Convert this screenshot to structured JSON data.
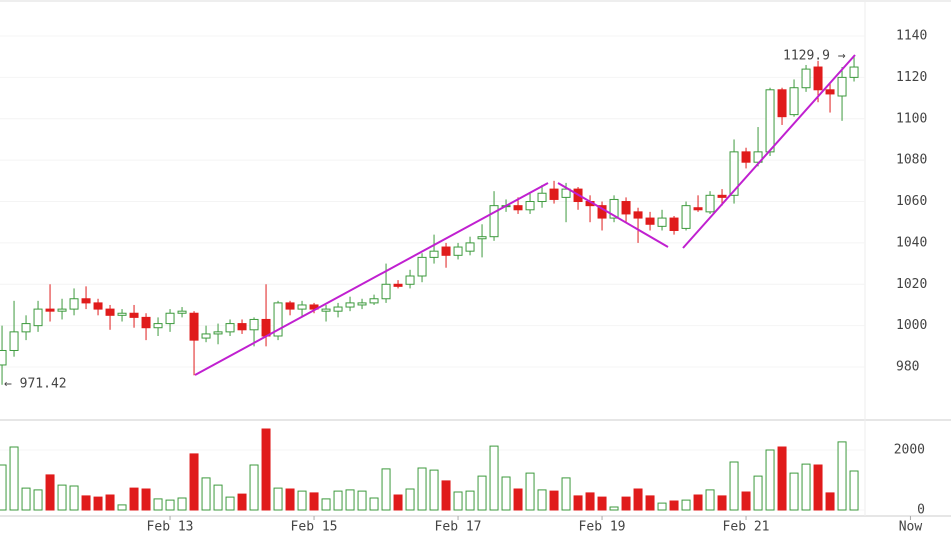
{
  "chart_data": {
    "type": "candlestick",
    "open": [
      981,
      988,
      997,
      1000,
      1008,
      1007,
      1008,
      1013,
      1011,
      1008,
      1005,
      1006,
      1004,
      999,
      1001,
      1006,
      1006,
      994,
      996,
      997,
      1001,
      998,
      1003,
      995,
      1011,
      1008,
      1010,
      1007,
      1007,
      1009,
      1010,
      1011,
      1013,
      1020,
      1020,
      1024,
      1033,
      1038,
      1034,
      1036,
      1042,
      1043,
      1058,
      1058,
      1056,
      1060,
      1066,
      1062,
      1066,
      1060,
      1058,
      1052,
      1060,
      1055,
      1052,
      1048,
      1052,
      1047,
      1057,
      1055,
      1063,
      1063,
      1084,
      1079,
      1084,
      1114,
      1102,
      1115,
      1125,
      1114,
      1111,
      1120
    ],
    "high": [
      1000,
      1012,
      1005,
      1012,
      1020,
      1013,
      1018,
      1019,
      1013,
      1010,
      1008,
      1010,
      1006,
      1004,
      1008,
      1009,
      1007,
      1000,
      1001,
      1003,
      1003,
      1004,
      1020,
      1012,
      1012,
      1012,
      1011,
      1010,
      1011,
      1014,
      1013,
      1015,
      1030,
      1022,
      1027,
      1035,
      1044,
      1040,
      1040,
      1043,
      1049,
      1065,
      1061,
      1062,
      1064,
      1068,
      1070,
      1069,
      1067,
      1063,
      1060,
      1063,
      1062,
      1057,
      1055,
      1056,
      1053,
      1060,
      1063,
      1065,
      1066,
      1090,
      1086,
      1096,
      1115,
      1115,
      1119,
      1126,
      1128,
      1117,
      1125,
      1129.9
    ],
    "low": [
      971.42,
      985,
      993,
      997,
      1002,
      1003,
      1005,
      1008,
      1005,
      998,
      1002,
      999,
      993,
      995,
      997,
      1004,
      976,
      992,
      991,
      995,
      996,
      990,
      990,
      993,
      1005,
      1004,
      1006,
      1002,
      1004,
      1007,
      1008,
      1010,
      1011,
      1018,
      1018,
      1021,
      1030,
      1028,
      1032,
      1034,
      1033,
      1041,
      1055,
      1054,
      1054,
      1057,
      1059,
      1050,
      1056,
      1050,
      1046,
      1050,
      1050,
      1040,
      1046,
      1046,
      1044,
      1046,
      1055,
      1054,
      1058,
      1059,
      1076,
      1077,
      1082,
      1097,
      1101,
      1113,
      1108,
      1103,
      1099,
      1118
    ],
    "close": [
      988,
      997,
      1001,
      1008,
      1007,
      1008,
      1013,
      1011,
      1008,
      1005,
      1006,
      1004,
      999,
      1001,
      1006,
      1007,
      993,
      996,
      997,
      1001,
      998,
      1003,
      995,
      1011,
      1008,
      1010,
      1008,
      1008,
      1009,
      1011,
      1011,
      1013,
      1020,
      1019,
      1024,
      1033,
      1036,
      1034,
      1038,
      1040,
      1043,
      1058,
      1058,
      1056,
      1060,
      1064,
      1061,
      1066,
      1060,
      1058,
      1052,
      1061,
      1054,
      1052,
      1049,
      1052,
      1046,
      1058,
      1056,
      1063,
      1062,
      1084,
      1079,
      1084,
      1114,
      1101,
      1115,
      1124,
      1114,
      1112,
      1120,
      1125
    ],
    "volume": [
      1500,
      2100,
      730,
      670,
      1170,
      830,
      800,
      470,
      430,
      500,
      170,
      730,
      700,
      370,
      330,
      400,
      1870,
      1070,
      830,
      430,
      530,
      1500,
      2700,
      730,
      700,
      630,
      570,
      370,
      630,
      670,
      630,
      400,
      1370,
      500,
      700,
      1400,
      1330,
      970,
      600,
      630,
      1130,
      2130,
      1100,
      700,
      1230,
      670,
      630,
      1070,
      470,
      570,
      430,
      100,
      430,
      700,
      470,
      230,
      300,
      330,
      500,
      670,
      470,
      1600,
      600,
      1130,
      2000,
      2100,
      1230,
      1530,
      1500,
      570,
      2270,
      1300
    ],
    "up_color": "#3d9a3d",
    "down_color": "#e01b1b",
    "ylim": [
      954.4,
      1157.4
    ],
    "yticks": [
      980,
      1000,
      1020,
      1040,
      1060,
      1080,
      1100,
      1120,
      1140
    ],
    "y2lim": [
      0,
      3000
    ],
    "y2ticks": [
      0,
      2000
    ],
    "xlim": [
      -0.17,
      79.08
    ],
    "xticks": [
      {
        "value": 14,
        "label": "Feb 13"
      },
      {
        "value": 26,
        "label": "Feb 15"
      },
      {
        "value": 38,
        "label": "Feb 17"
      },
      {
        "value": 50,
        "label": "Feb 19"
      },
      {
        "value": 62,
        "label": "Feb 21"
      },
      {
        "value": 75.7,
        "label": "Now"
      }
    ],
    "annotations": [
      "1129.9 →",
      "← 971.42"
    ]
  }
}
